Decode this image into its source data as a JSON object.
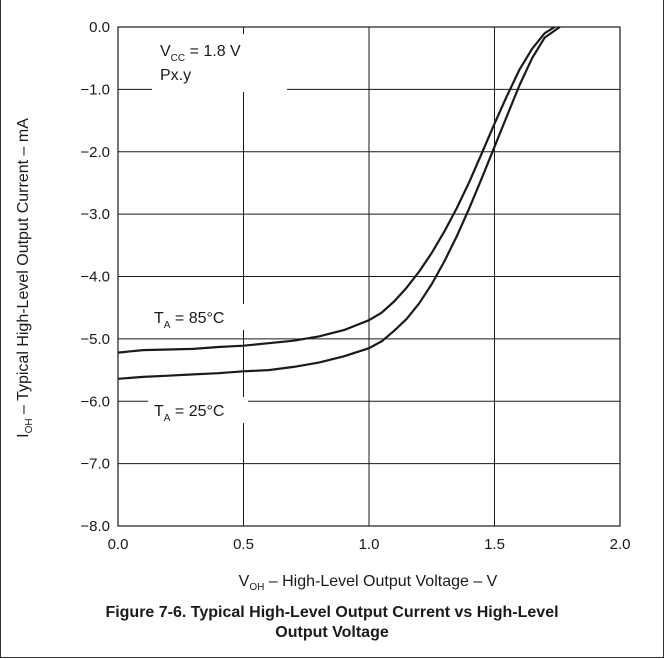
{
  "chart_data": {
    "type": "line",
    "title": "",
    "xlabel": {
      "main": "V",
      "sub": "OH",
      "rest": " – High-Level Output Voltage – V"
    },
    "ylabel": {
      "main": "I",
      "sub": "OH",
      "rest": " – Typical High-Level Output Current – mA"
    },
    "xlim": [
      0.0,
      2.0
    ],
    "ylim": [
      -8.0,
      0.0
    ],
    "x_ticks": [
      "0.0",
      "0.5",
      "1.0",
      "1.5",
      "2.0"
    ],
    "y_ticks": [
      "0.0",
      "−1.0",
      "−2.0",
      "−3.0",
      "−4.0",
      "−5.0",
      "−6.0",
      "−7.0",
      "−8.0"
    ],
    "grid": true,
    "annotations": {
      "vcc": {
        "main": "V",
        "sub": "CC",
        "rest": " = 1.8 V"
      },
      "pin": "Px.y"
    },
    "series": [
      {
        "name": "T_A = 85°C",
        "label": {
          "main": "T",
          "sub": "A",
          "rest": " = 85°C"
        },
        "x": [
          0.0,
          0.1,
          0.2,
          0.3,
          0.4,
          0.5,
          0.6,
          0.7,
          0.8,
          0.9,
          1.0,
          1.05,
          1.1,
          1.15,
          1.2,
          1.25,
          1.3,
          1.35,
          1.4,
          1.45,
          1.5,
          1.55,
          1.6,
          1.65,
          1.7,
          1.74
        ],
        "y": [
          -5.22,
          -5.18,
          -5.17,
          -5.16,
          -5.13,
          -5.11,
          -5.07,
          -5.03,
          -4.96,
          -4.86,
          -4.7,
          -4.58,
          -4.4,
          -4.18,
          -3.92,
          -3.62,
          -3.28,
          -2.9,
          -2.48,
          -2.02,
          -1.55,
          -1.1,
          -0.68,
          -0.35,
          -0.1,
          0.0
        ]
      },
      {
        "name": "T_A = 25°C",
        "label": {
          "main": "T",
          "sub": "A",
          "rest": " = 25°C"
        },
        "x": [
          0.0,
          0.1,
          0.2,
          0.3,
          0.4,
          0.5,
          0.6,
          0.7,
          0.8,
          0.9,
          1.0,
          1.05,
          1.1,
          1.15,
          1.2,
          1.25,
          1.3,
          1.35,
          1.4,
          1.45,
          1.5,
          1.55,
          1.6,
          1.65,
          1.7,
          1.76
        ],
        "y": [
          -5.64,
          -5.61,
          -5.59,
          -5.57,
          -5.55,
          -5.52,
          -5.5,
          -5.45,
          -5.38,
          -5.28,
          -5.15,
          -5.04,
          -4.87,
          -4.68,
          -4.43,
          -4.12,
          -3.76,
          -3.35,
          -2.9,
          -2.42,
          -1.92,
          -1.42,
          -0.93,
          -0.5,
          -0.17,
          0.0
        ]
      }
    ]
  },
  "caption": {
    "line1": "Figure 7-6. Typical High-Level Output Current vs High-Level",
    "line2": "Output Voltage"
  },
  "colors": {
    "line": "#1a1a1a",
    "grid": "#1a1a1a",
    "background": "#ffffff"
  }
}
